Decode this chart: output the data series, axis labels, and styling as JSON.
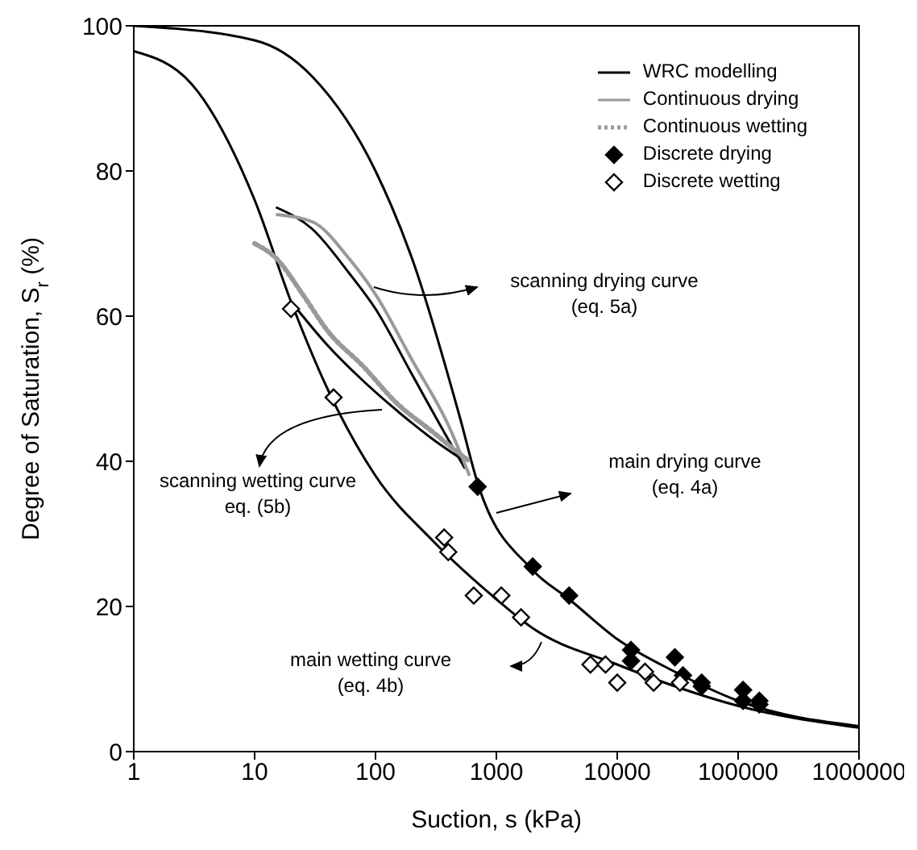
{
  "chart_data": {
    "type": "line",
    "xlabel": "Suction, s (kPa)",
    "ylabel": "Degree of Saturation, S$_{r}$ (%)",
    "log": "x",
    "xlim": [
      1,
      1000000
    ],
    "xticks": [
      1,
      10,
      100,
      1000,
      10000,
      100000,
      1000000
    ],
    "ylim": [
      0,
      100
    ],
    "yticks": [
      0,
      20,
      40,
      60,
      80,
      100
    ],
    "grid": false,
    "legend": "top right",
    "series": [
      {
        "name": "WRC modelling",
        "color": "#000000",
        "line_style": "solid",
        "x": [
          1,
          10,
          30,
          100,
          200,
          500,
          700,
          2000,
          4000,
          10000,
          30000,
          100000,
          1000000,
          null,
          1,
          3,
          10,
          20,
          40,
          100,
          300,
          1000,
          2000,
          10000,
          30000,
          100000,
          1000000,
          null,
          15,
          30,
          60,
          100,
          200,
          400,
          550,
          null,
          20,
          40,
          80,
          150,
          300,
          550
        ],
        "values": [
          100,
          98,
          93,
          80,
          68,
          46,
          37,
          25,
          21,
          15.5,
          11,
          7,
          3.5,
          null,
          96.5,
          92,
          76,
          62,
          50,
          38,
          29,
          21,
          17,
          12,
          9,
          6.3,
          3.3,
          null,
          75,
          72,
          66,
          61,
          52,
          43,
          39,
          null,
          62,
          56,
          51,
          47,
          43,
          40
        ]
      },
      {
        "name": "Continuous drying",
        "color": "#999999",
        "line_style": "solid",
        "x": [
          15,
          30,
          60,
          100,
          200,
          400,
          600
        ],
        "values": [
          74,
          73,
          68,
          63,
          54,
          45,
          38
        ]
      },
      {
        "name": "Continuous wetting",
        "color": "#999999",
        "line_style": "dotted",
        "x": [
          10,
          15,
          25,
          40,
          80,
          150,
          300,
          500,
          600
        ],
        "values": [
          70,
          68,
          63,
          58,
          53,
          48,
          44,
          41,
          40
        ]
      },
      {
        "name": "Discrete drying",
        "type": "scatter",
        "marker": "diamond",
        "color": "#000000",
        "x": [
          700,
          2000,
          4000,
          13000,
          13000,
          30000,
          35000,
          50000,
          50000,
          110000,
          110000,
          150000,
          150000
        ],
        "values": [
          36.5,
          25.5,
          21.5,
          14,
          12.5,
          13,
          10.5,
          9.5,
          9,
          8.5,
          7,
          7,
          6.5
        ]
      },
      {
        "name": "Discrete wetting",
        "type": "scatter",
        "marker": "diamond",
        "color": "#ffffff",
        "x": [
          20,
          45,
          370,
          400,
          650,
          1100,
          1600,
          6000,
          8000,
          10000,
          17000,
          20000,
          33000
        ],
        "values": [
          61,
          48.8,
          29.5,
          27.5,
          21.5,
          21.5,
          18.5,
          12,
          12,
          9.5,
          11,
          9.5,
          9.5
        ]
      }
    ],
    "annotations": [
      "scanning drying curve\n(eq. 5a)",
      "scanning wetting curve\neq. (5b)",
      "main drying curve\n(eq. 4a)",
      "main wetting curve\n(eq. 4b)"
    ]
  }
}
